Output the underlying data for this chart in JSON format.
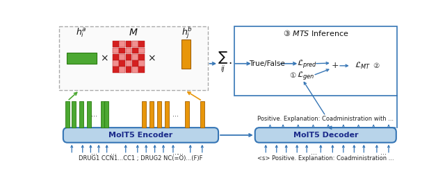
{
  "fig_width": 6.4,
  "fig_height": 2.64,
  "dpi": 100,
  "bg_color": "#ffffff",
  "blue_face": "#b8d4ea",
  "blue_edge": "#3575b5",
  "green_color": "#4ca832",
  "orange_color": "#e8960a",
  "red_dark": "#d42020",
  "red_light": "#f08080",
  "arrow_blue": "#3575b5",
  "encoder_label": "MolT5 Encoder",
  "decoder_label": "MolT5 Decoder",
  "encoder_input": "DRUG1 CCN1...CC1 ; DRUG2 NC(=O)...(F)F",
  "decoder_input": "<s> Positive. Explanation: Coadministration ...",
  "decoder_output": "Positive. Explanation: Coadministration with ...",
  "mts_label": "③ $\\it{MTS}$ Inference",
  "true_false": "True/False",
  "l_pred": "$\\mathcal{L}_{pred}$",
  "l_gen": "$\\mathcal{L}_{gen}$",
  "l_mt": "$\\mathcal{L}_{MT}$",
  "h_i": "$h_i^a$",
  "M_label": "$M$",
  "h_j": "$h_j^b$"
}
